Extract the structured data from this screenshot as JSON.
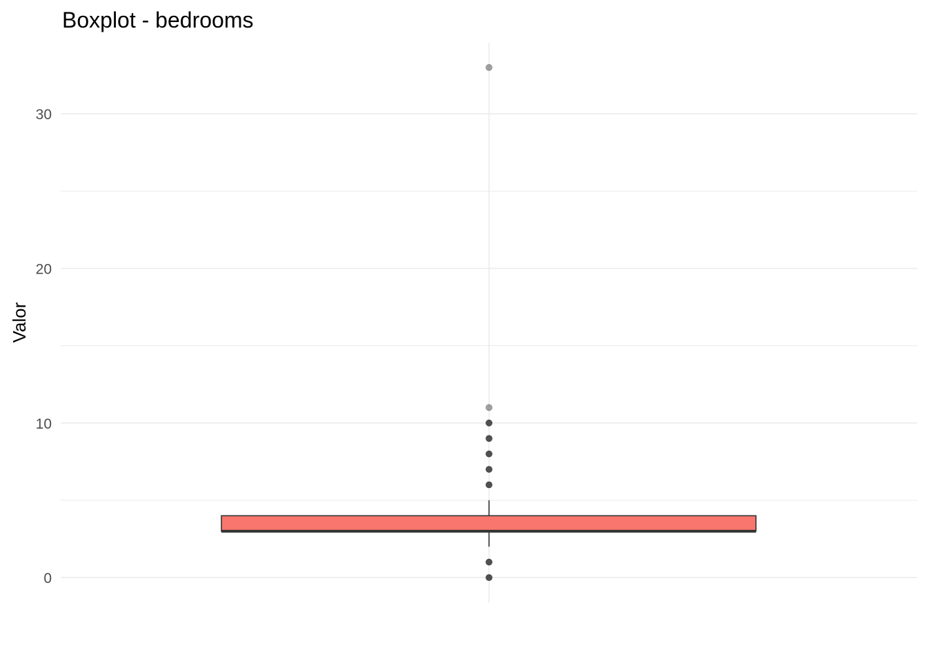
{
  "chart_data": {
    "type": "boxplot",
    "title": "Boxplot - bedrooms",
    "xlabel": "",
    "ylabel": "Valor",
    "ylim": [
      -1.6,
      34.6
    ],
    "yticks": [
      0,
      10,
      20,
      30
    ],
    "ytick_labels": [
      "0",
      "10",
      "20",
      "30"
    ],
    "grid": true,
    "legend": "none",
    "box": {
      "q1": 3,
      "median": 3,
      "q3": 4,
      "whisker_low": 2,
      "whisker_high": 5
    },
    "outliers": [
      {
        "value": 0,
        "opacity": 0.85
      },
      {
        "value": 1,
        "opacity": 0.85
      },
      {
        "value": 6,
        "opacity": 0.85
      },
      {
        "value": 7,
        "opacity": 0.85
      },
      {
        "value": 8,
        "opacity": 0.85
      },
      {
        "value": 9,
        "opacity": 0.85
      },
      {
        "value": 10,
        "opacity": 0.85
      },
      {
        "value": 11,
        "opacity": 0.45
      },
      {
        "value": 33,
        "opacity": 0.45
      }
    ],
    "colors": {
      "box_fill": "#F8766D",
      "box_stroke": "#333333",
      "point": "#333333",
      "grid": "#ebebeb"
    }
  }
}
